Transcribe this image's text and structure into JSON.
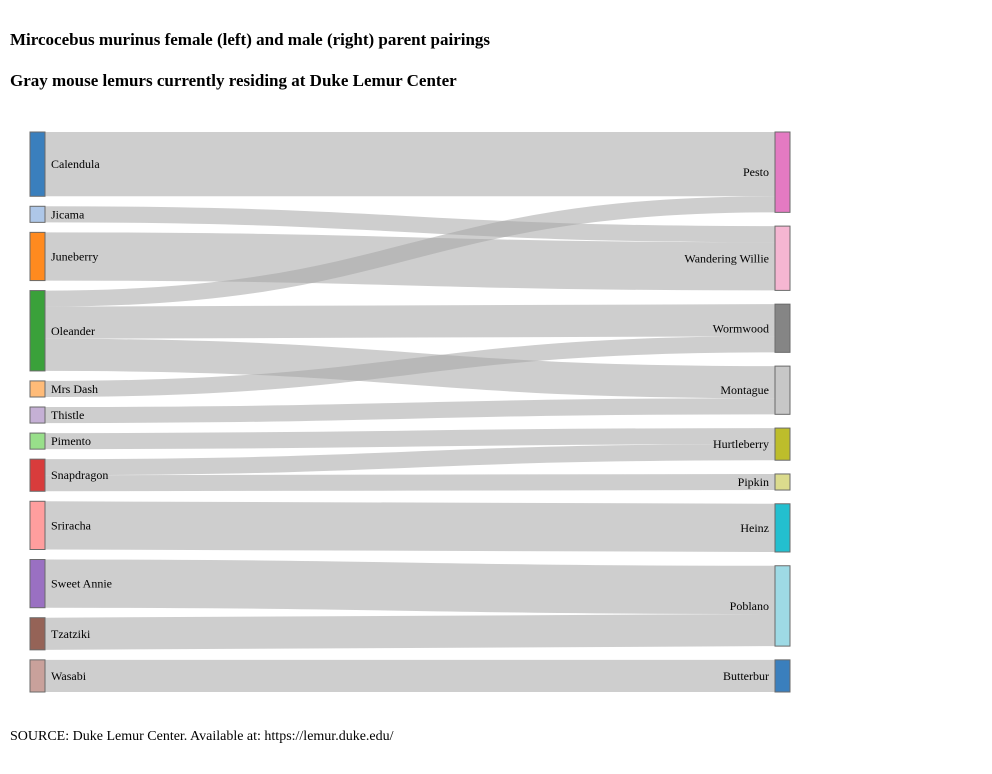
{
  "header": {
    "title": "Mircocebus murinus female (left) and male (right) parent pairings",
    "subtitle": "Gray mouse lemurs currently residing at Duke Lemur Center"
  },
  "footer": {
    "source": "SOURCE: Duke Lemur Center. Available at: https://lemur.duke.edu/"
  },
  "chart_data": {
    "type": "sankey",
    "title": "Mircocebus murinus female (left) and male (right) parent pairings",
    "subtitle": "Gray mouse lemurs currently residing at Duke Lemur Center",
    "link_color": "#a6a6a6",
    "left_nodes": [
      {
        "name": "Calendula",
        "color": "#3a7fbd"
      },
      {
        "name": "Jicama",
        "color": "#aec7e8"
      },
      {
        "name": "Juneberry",
        "color": "#ff8a1f"
      },
      {
        "name": "Oleander",
        "color": "#3aa13a"
      },
      {
        "name": "Mrs Dash",
        "color": "#ffbb78"
      },
      {
        "name": "Thistle",
        "color": "#c5b0d5"
      },
      {
        "name": "Pimento",
        "color": "#98df8a"
      },
      {
        "name": "Snapdragon",
        "color": "#d83c3c"
      },
      {
        "name": "Sriracha",
        "color": "#ff9e9e"
      },
      {
        "name": "Sweet Annie",
        "color": "#9a70c2"
      },
      {
        "name": "Tzatziki",
        "color": "#956357"
      },
      {
        "name": "Wasabi",
        "color": "#c9a19b"
      }
    ],
    "right_nodes": [
      {
        "name": "Pesto",
        "color": "#e47ac2"
      },
      {
        "name": "Wandering Willie",
        "color": "#f5b6d2"
      },
      {
        "name": "Wormwood",
        "color": "#858585"
      },
      {
        "name": "Montague",
        "color": "#c7c7c7"
      },
      {
        "name": "Hurtleberry",
        "color": "#bdbd2b"
      },
      {
        "name": "Pipkin",
        "color": "#dbdb8d"
      },
      {
        "name": "Heinz",
        "color": "#23bfcf"
      },
      {
        "name": "Poblano",
        "color": "#9edae5"
      },
      {
        "name": "Butterbur",
        "color": "#3a7fbd"
      }
    ],
    "links": [
      {
        "source": "Calendula",
        "target": "Pesto",
        "value": 4
      },
      {
        "source": "Jicama",
        "target": "Wandering Willie",
        "value": 1
      },
      {
        "source": "Juneberry",
        "target": "Wandering Willie",
        "value": 3
      },
      {
        "source": "Oleander",
        "target": "Pesto",
        "value": 1
      },
      {
        "source": "Oleander",
        "target": "Wormwood",
        "value": 2
      },
      {
        "source": "Oleander",
        "target": "Montague",
        "value": 2
      },
      {
        "source": "Mrs Dash",
        "target": "Wormwood",
        "value": 1
      },
      {
        "source": "Thistle",
        "target": "Montague",
        "value": 1
      },
      {
        "source": "Pimento",
        "target": "Hurtleberry",
        "value": 1
      },
      {
        "source": "Snapdragon",
        "target": "Hurtleberry",
        "value": 1
      },
      {
        "source": "Snapdragon",
        "target": "Pipkin",
        "value": 1
      },
      {
        "source": "Sriracha",
        "target": "Heinz",
        "value": 3
      },
      {
        "source": "Sweet Annie",
        "target": "Poblano",
        "value": 3
      },
      {
        "source": "Tzatziki",
        "target": "Poblano",
        "value": 2
      },
      {
        "source": "Wasabi",
        "target": "Butterbur",
        "value": 2
      }
    ]
  }
}
